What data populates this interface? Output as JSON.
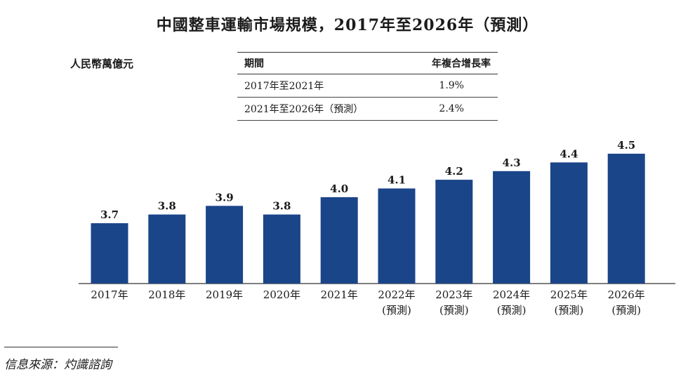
{
  "title": "中國整車運輸市場規模，2017年至2026年（預測）",
  "unit_label": "人民幣萬億元",
  "cagr_table": {
    "headers": [
      "期間",
      "年複合增長率"
    ],
    "rows": [
      {
        "period": "2017年至2021年",
        "rate": "1.9%"
      },
      {
        "period": "2021年至2026年（預測）",
        "rate": "2.4%"
      }
    ]
  },
  "source": "信息來源：灼識諮詢",
  "colors": {
    "bar": "#1b4589",
    "axis": "#333333"
  },
  "chart_data": {
    "type": "bar",
    "title": "中國整車運輸市場規模，2017年至2026年（預測）",
    "ylabel": "人民幣萬億元",
    "categories": [
      "2017年",
      "2018年",
      "2019年",
      "2020年",
      "2021年",
      "2022年\n(預測)",
      "2023年\n(預測)",
      "2024年\n(預測)",
      "2025年\n(預測)",
      "2026年\n(預測)"
    ],
    "values": [
      3.7,
      3.8,
      3.9,
      3.8,
      4.0,
      4.1,
      4.2,
      4.3,
      4.4,
      4.5
    ],
    "value_labels": [
      "3.7",
      "3.8",
      "3.9",
      "3.8",
      "4.0",
      "4.1",
      "4.2",
      "4.3",
      "4.4",
      "4.5"
    ]
  }
}
